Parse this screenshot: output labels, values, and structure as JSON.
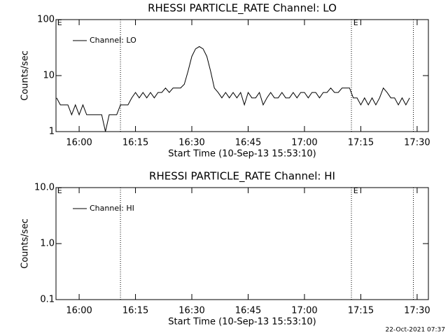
{
  "chart_data": [
    {
      "type": "line",
      "title": "RHESSI PARTICLE_RATE Channel: LO",
      "xlabel": "Start Time (10-Sep-13 15:53:10)",
      "ylabel": "Counts/sec",
      "log_y": true,
      "legend": "upper left",
      "x": [
        "15:54",
        "15:55",
        "15:56",
        "15:57",
        "15:58",
        "15:59",
        "16:00",
        "16:01",
        "16:02",
        "16:03",
        "16:04",
        "16:05",
        "16:06",
        "16:07",
        "16:08",
        "16:09",
        "16:10",
        "16:11",
        "16:12",
        "16:13",
        "16:14",
        "16:15",
        "16:16",
        "16:17",
        "16:18",
        "16:19",
        "16:20",
        "16:21",
        "16:22",
        "16:23",
        "16:24",
        "16:25",
        "16:26",
        "16:27",
        "16:28",
        "16:29",
        "16:30",
        "16:31",
        "16:32",
        "16:33",
        "16:34",
        "16:35",
        "16:36",
        "16:37",
        "16:38",
        "16:39",
        "16:40",
        "16:41",
        "16:42",
        "16:43",
        "16:44",
        "16:45",
        "16:46",
        "16:47",
        "16:48",
        "16:49",
        "16:50",
        "16:51",
        "16:52",
        "16:53",
        "16:54",
        "16:55",
        "16:56",
        "16:57",
        "16:58",
        "16:59",
        "17:00",
        "17:01",
        "17:02",
        "17:03",
        "17:04",
        "17:05",
        "17:06",
        "17:07",
        "17:08",
        "17:09",
        "17:10",
        "17:11",
        "17:12",
        "17:13",
        "17:14",
        "17:15",
        "17:16",
        "17:17",
        "17:18",
        "17:19",
        "17:20",
        "17:21",
        "17:22",
        "17:23",
        "17:24",
        "17:25",
        "17:26",
        "17:27",
        "17:28"
      ],
      "series": [
        {
          "name": "Channel: LO",
          "color": "#000000",
          "values": [
            4,
            3,
            3,
            3,
            2,
            3,
            2,
            3,
            2,
            2,
            2,
            2,
            2,
            1,
            2,
            2,
            2,
            3,
            3,
            3,
            4,
            5,
            4,
            5,
            4,
            5,
            4,
            5,
            5,
            6,
            5,
            6,
            6,
            6,
            7,
            12,
            22,
            30,
            33,
            30,
            22,
            12,
            6,
            5,
            4,
            5,
            4,
            5,
            4,
            5,
            3,
            5,
            4,
            4,
            5,
            3,
            4,
            5,
            4,
            4,
            5,
            4,
            4,
            5,
            4,
            5,
            5,
            4,
            5,
            5,
            4,
            5,
            5,
            6,
            5,
            5,
            6,
            6,
            6,
            4,
            4,
            3,
            4,
            3,
            4,
            3,
            4,
            6,
            5,
            4,
            4,
            3,
            4,
            3,
            4
          ]
        }
      ],
      "xlim": [
        "15:53:50",
        "17:33:00"
      ],
      "xticks": [
        "16:00",
        "16:15",
        "16:30",
        "16:45",
        "17:00",
        "17:15",
        "17:30"
      ],
      "ylim": [
        1,
        100
      ],
      "yticks": [
        1,
        10,
        100
      ],
      "event_lines": [
        "16:11",
        "17:12:30",
        "17:29"
      ],
      "annotations": [
        {
          "text": "E",
          "x": "15:54:10"
        },
        {
          "text": "E",
          "x": "17:13"
        }
      ]
    },
    {
      "type": "line",
      "title": "RHESSI PARTICLE_RATE Channel: HI",
      "xlabel": "Start Time (10-Sep-13 15:53:10)",
      "ylabel": "Counts/sec",
      "log_y": true,
      "legend": "upper left",
      "x": [],
      "series": [
        {
          "name": "Channel: HI",
          "color": "#000000",
          "values": []
        }
      ],
      "xlim": [
        "15:53:50",
        "17:33:00"
      ],
      "xticks": [
        "16:00",
        "16:15",
        "16:30",
        "16:45",
        "17:00",
        "17:15",
        "17:30"
      ],
      "ylim": [
        0.1,
        10
      ],
      "yticks": [
        {
          "value": 0.1,
          "label": "0.1"
        },
        {
          "value": 1,
          "label": "1.0"
        },
        {
          "value": 10,
          "label": "10.0"
        }
      ],
      "event_lines": [
        "16:11",
        "17:12:30",
        "17:29"
      ],
      "annotations": [
        {
          "text": "E",
          "x": "15:54:10"
        },
        {
          "text": "E",
          "x": "17:13"
        }
      ]
    }
  ],
  "footer": "22-Oct-2021 07:37"
}
